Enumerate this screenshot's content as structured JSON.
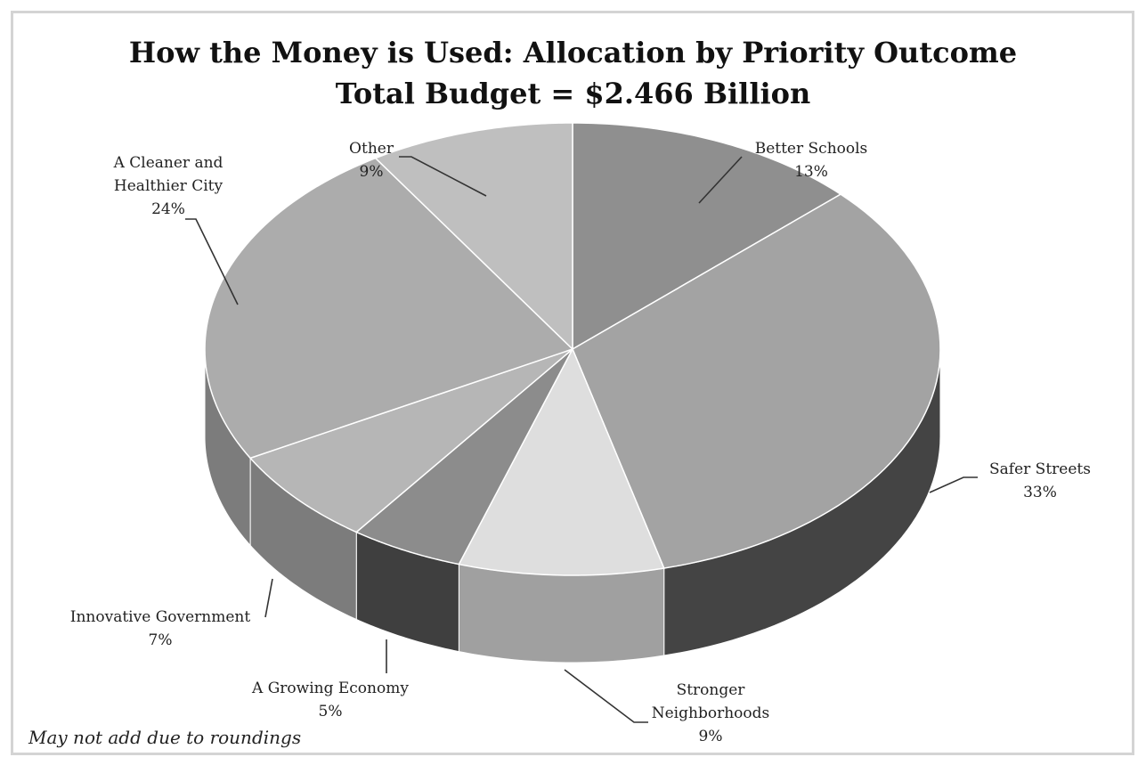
{
  "chart_data": {
    "type": "pie",
    "title": "How the Money is Used: Allocation by Priority Outcome",
    "subtitle": "Total Budget = $2.466 Billion",
    "style": "3d",
    "slices": [
      {
        "label": "Better Schools",
        "value": 13,
        "display": "13%",
        "color": "#8f8f8f"
      },
      {
        "label": "Safer Streets",
        "value": 33,
        "display": "33%",
        "color": "#a3a3a3"
      },
      {
        "label": "Stronger Neighborhoods",
        "value": 9,
        "display": "9%",
        "color": "#dedede"
      },
      {
        "label": "A Growing Economy",
        "value": 5,
        "display": "5%",
        "color": "#8c8c8c"
      },
      {
        "label": "Innovative Government",
        "value": 7,
        "display": "7%",
        "color": "#b6b6b6"
      },
      {
        "label": "A Cleaner and Healthier City",
        "value": 24,
        "display": "24%",
        "color": "#acacac"
      },
      {
        "label": "Other",
        "value": 9,
        "display": "9%",
        "color": "#bfbfbf"
      }
    ],
    "note": "May not add due to roundings"
  }
}
